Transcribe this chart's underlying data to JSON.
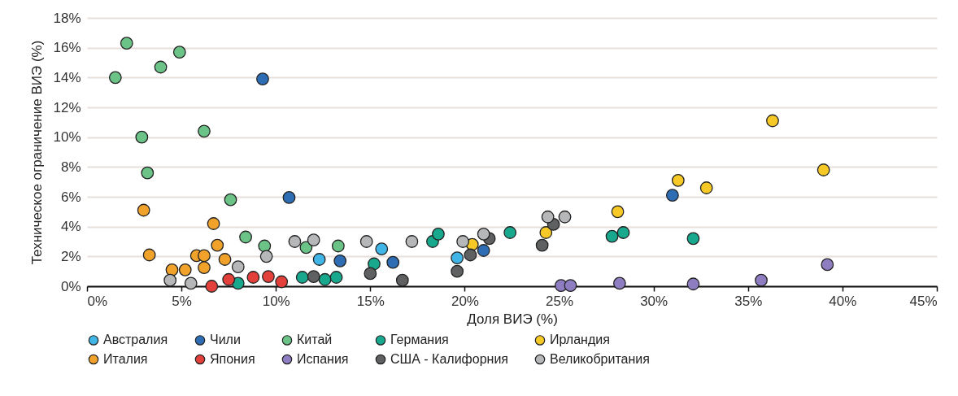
{
  "chart_data": {
    "type": "scatter",
    "xlabel": "Доля ВИЭ (%)",
    "ylabel": "Техническое ограничение ВИЭ (%)",
    "xlim": [
      0,
      45
    ],
    "ylim": [
      0,
      18
    ],
    "xticks": [
      {
        "value": 0,
        "label": "0%"
      },
      {
        "value": 5,
        "label": "5%"
      },
      {
        "value": 10,
        "label": "10%"
      },
      {
        "value": 15,
        "label": "15%"
      },
      {
        "value": 20,
        "label": "20%"
      },
      {
        "value": 25,
        "label": "25%"
      },
      {
        "value": 30,
        "label": "30%"
      },
      {
        "value": 35,
        "label": "35%"
      },
      {
        "value": 40,
        "label": "40%"
      },
      {
        "value": 45,
        "label": "45%"
      }
    ],
    "yticks": [
      {
        "value": 0,
        "label": "0%"
      },
      {
        "value": 2,
        "label": "2%"
      },
      {
        "value": 4,
        "label": "4%"
      },
      {
        "value": 6,
        "label": "6%"
      },
      {
        "value": 8,
        "label": "8%"
      },
      {
        "value": 10,
        "label": "10%"
      },
      {
        "value": 12,
        "label": "12%"
      },
      {
        "value": 14,
        "label": "14%"
      },
      {
        "value": 16,
        "label": "16%"
      },
      {
        "value": 18,
        "label": "18%"
      }
    ],
    "grid": "y",
    "legend": "bottom",
    "marker": "circle",
    "series": [
      {
        "name": "Австралия",
        "color": "#41b6e6",
        "x": [
          12.3,
          15.6,
          19.6
        ],
        "values": [
          1.8,
          2.5,
          1.9
        ]
      },
      {
        "name": "Чили",
        "color": "#2e6db4",
        "x": [
          9.3,
          10.7,
          13.4,
          16.2,
          21.0,
          31.0
        ],
        "values": [
          13.9,
          5.95,
          1.7,
          1.6,
          2.4,
          6.1
        ]
      },
      {
        "name": "Китай",
        "color": "#6cc387",
        "x": [
          2.1,
          1.5,
          3.9,
          4.9,
          2.9,
          6.2,
          3.2,
          7.6,
          8.4,
          9.4,
          11.6,
          13.3
        ],
        "values": [
          16.3,
          14.0,
          14.7,
          15.7,
          10.0,
          10.4,
          7.6,
          5.8,
          3.3,
          2.7,
          2.6,
          2.7
        ]
      },
      {
        "name": "Германия",
        "color": "#18a88e",
        "x": [
          8.0,
          11.4,
          12.6,
          13.2,
          15.2,
          18.3,
          18.6,
          22.4,
          27.8,
          28.4,
          32.1
        ],
        "values": [
          0.2,
          0.6,
          0.45,
          0.6,
          1.5,
          3.0,
          3.5,
          3.6,
          3.35,
          3.6,
          3.2
        ]
      },
      {
        "name": "Ирландия",
        "color": "#f6c927",
        "x": [
          20.4,
          24.3,
          28.1,
          31.3,
          32.8,
          36.3,
          39.0
        ],
        "values": [
          2.8,
          3.6,
          5.0,
          7.1,
          6.6,
          11.1,
          7.8
        ]
      },
      {
        "name": "Италия",
        "color": "#f0a22b",
        "x": [
          3.0,
          3.3,
          4.5,
          5.2,
          5.8,
          6.2,
          6.2,
          6.7,
          6.9,
          7.3
        ],
        "values": [
          5.1,
          2.1,
          1.1,
          1.1,
          2.05,
          2.05,
          1.25,
          4.2,
          2.75,
          1.8
        ]
      },
      {
        "name": "Япония",
        "color": "#e3403b",
        "x": [
          6.6,
          7.5,
          8.8,
          9.6,
          10.3
        ],
        "values": [
          0.0,
          0.45,
          0.6,
          0.65,
          0.3
        ]
      },
      {
        "name": "Испания",
        "color": "#8f7dc2",
        "x": [
          25.1,
          25.6,
          28.2,
          32.1,
          35.7,
          39.2
        ],
        "values": [
          0.05,
          0.05,
          0.2,
          0.15,
          0.4,
          1.45
        ]
      },
      {
        "name": "США - Калифорния",
        "color": "#5e6062",
        "x": [
          12.0,
          15.0,
          16.7,
          19.6,
          20.3,
          21.3,
          24.1,
          24.7
        ],
        "values": [
          0.65,
          0.85,
          0.4,
          1.0,
          2.1,
          3.2,
          2.75,
          4.15
        ]
      },
      {
        "name": "Великобритания",
        "color": "#b5b7b9",
        "x": [
          4.4,
          5.5,
          8.0,
          9.5,
          11.0,
          12.0,
          14.8,
          17.2,
          19.9,
          21.0,
          24.4,
          25.3
        ],
        "values": [
          0.4,
          0.2,
          1.3,
          2.0,
          3.0,
          3.1,
          3.0,
          3.0,
          3.0,
          3.5,
          4.65,
          4.65
        ]
      }
    ]
  }
}
